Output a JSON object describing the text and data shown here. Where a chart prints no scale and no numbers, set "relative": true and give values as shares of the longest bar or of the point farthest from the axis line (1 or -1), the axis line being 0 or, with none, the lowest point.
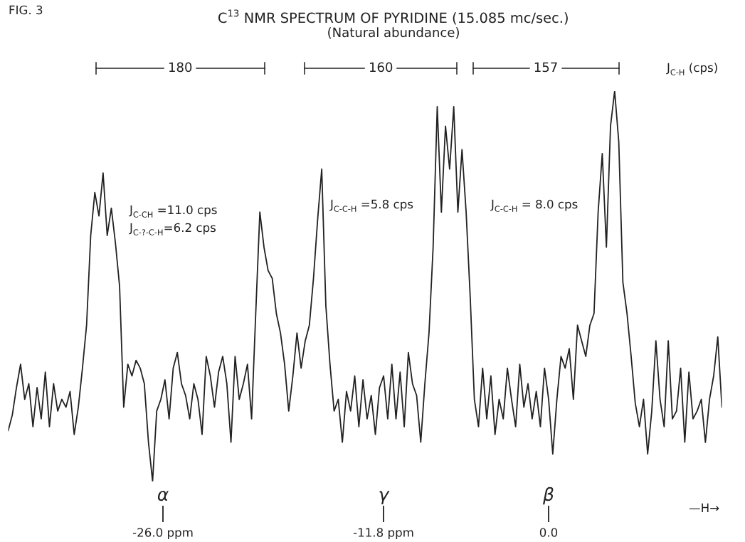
{
  "chart_data": {
    "type": "line",
    "relative": true,
    "marker": "none",
    "line_style": "solid",
    "title": "C$^{13}$ NMR SPECTRUM OF PYRIDINE (15.085 mc/sec.)",
    "subtitle": "(Natural abundance)",
    "categories": [
      null,
      null,
      null,
      null,
      null,
      null,
      null,
      null,
      null,
      null,
      null,
      null,
      null,
      null,
      null,
      null,
      null,
      null,
      null,
      null,
      null,
      null,
      null,
      null,
      null,
      null,
      null,
      null,
      null,
      null,
      null,
      null,
      null,
      null,
      null,
      null,
      null,
      null,
      null,
      null,
      null,
      null,
      null,
      null,
      null,
      null,
      null,
      null,
      null,
      null,
      null,
      null,
      null,
      null,
      null,
      null,
      null,
      null,
      null,
      null,
      null,
      null,
      null,
      null,
      null,
      null,
      null,
      null,
      null,
      null,
      null,
      null,
      null,
      null,
      null,
      null,
      null,
      null,
      null,
      null,
      null,
      null,
      null,
      null,
      null,
      null,
      null,
      null,
      null,
      null,
      null,
      null,
      null,
      null,
      null,
      null,
      null,
      null,
      null,
      null,
      null,
      null,
      null,
      null,
      null,
      null,
      null,
      null,
      null,
      null,
      null,
      null,
      null,
      null,
      null,
      null,
      null,
      null,
      null,
      null,
      null,
      null,
      null,
      null,
      null,
      null,
      null,
      null,
      null,
      null,
      null,
      null,
      null,
      null,
      null,
      null,
      null,
      null,
      null,
      null,
      null,
      null,
      null,
      null,
      null,
      null,
      null,
      null,
      null,
      null,
      null,
      null,
      null,
      null,
      null,
      null,
      null,
      null,
      null,
      null,
      null,
      null,
      null,
      null,
      null,
      null,
      null,
      null,
      null,
      null,
      null,
      null,
      null,
      null
    ],
    "series": [
      {
        "color": "#222222",
        "values": [
          0.13,
          0.17,
          0.24,
          0.3,
          0.21,
          0.25,
          0.14,
          0.24,
          0.16,
          0.28,
          0.14,
          0.25,
          0.18,
          0.21,
          0.19,
          0.23,
          0.12,
          0.19,
          0.29,
          0.4,
          0.63,
          0.74,
          0.68,
          0.79,
          0.63,
          0.7,
          0.61,
          0.5,
          0.19,
          0.3,
          0.27,
          0.31,
          0.29,
          0.25,
          0.1,
          0.0,
          0.18,
          0.21,
          0.26,
          0.16,
          0.29,
          0.33,
          0.25,
          0.22,
          0.16,
          0.25,
          0.21,
          0.12,
          0.32,
          0.27,
          0.19,
          0.28,
          0.32,
          0.25,
          0.1,
          0.32,
          0.21,
          0.25,
          0.3,
          0.16,
          0.43,
          0.69,
          0.6,
          0.54,
          0.52,
          0.43,
          0.38,
          0.3,
          0.18,
          0.27,
          0.38,
          0.29,
          0.36,
          0.4,
          0.52,
          0.67,
          0.8,
          0.45,
          0.3,
          0.18,
          0.21,
          0.1,
          0.23,
          0.18,
          0.27,
          0.14,
          0.26,
          0.16,
          0.22,
          0.12,
          0.24,
          0.27,
          0.16,
          0.3,
          0.16,
          0.28,
          0.14,
          0.33,
          0.25,
          0.22,
          0.1,
          0.25,
          0.38,
          0.6,
          0.96,
          0.69,
          0.91,
          0.8,
          0.96,
          0.69,
          0.85,
          0.69,
          0.47,
          0.21,
          0.14,
          0.29,
          0.16,
          0.27,
          0.12,
          0.21,
          0.16,
          0.29,
          0.21,
          0.14,
          0.3,
          0.19,
          0.25,
          0.16,
          0.23,
          0.14,
          0.29,
          0.21,
          0.07,
          0.21,
          0.32,
          0.29,
          0.34,
          0.21,
          0.4,
          0.36,
          0.32,
          0.4,
          0.43,
          0.69,
          0.84,
          0.6,
          0.91,
          1.0,
          0.87,
          0.51,
          0.43,
          0.32,
          0.2,
          0.14,
          0.21,
          0.07,
          0.18,
          0.36,
          0.21,
          0.14,
          0.36,
          0.16,
          0.18,
          0.29,
          0.1,
          0.28,
          0.16,
          0.18,
          0.21,
          0.1,
          0.21,
          0.27,
          0.37,
          0.19
        ]
      }
    ],
    "annotations": [
      "FIG. 3",
      "180",
      "160",
      "157",
      "J$_{C-H}$ (cps)",
      "J$_{C-CH}$ =11.0 cps",
      "J$_{C-?-C-H}$=6.2 cps",
      "J$_{C-C-H}$ =5.8 cps",
      "J$_{C-C-H}$ = 8.0 cps",
      "α",
      "γ",
      "β",
      "—H→",
      "-26.0 ppm",
      "-11.8 ppm",
      "0.0"
    ]
  }
}
